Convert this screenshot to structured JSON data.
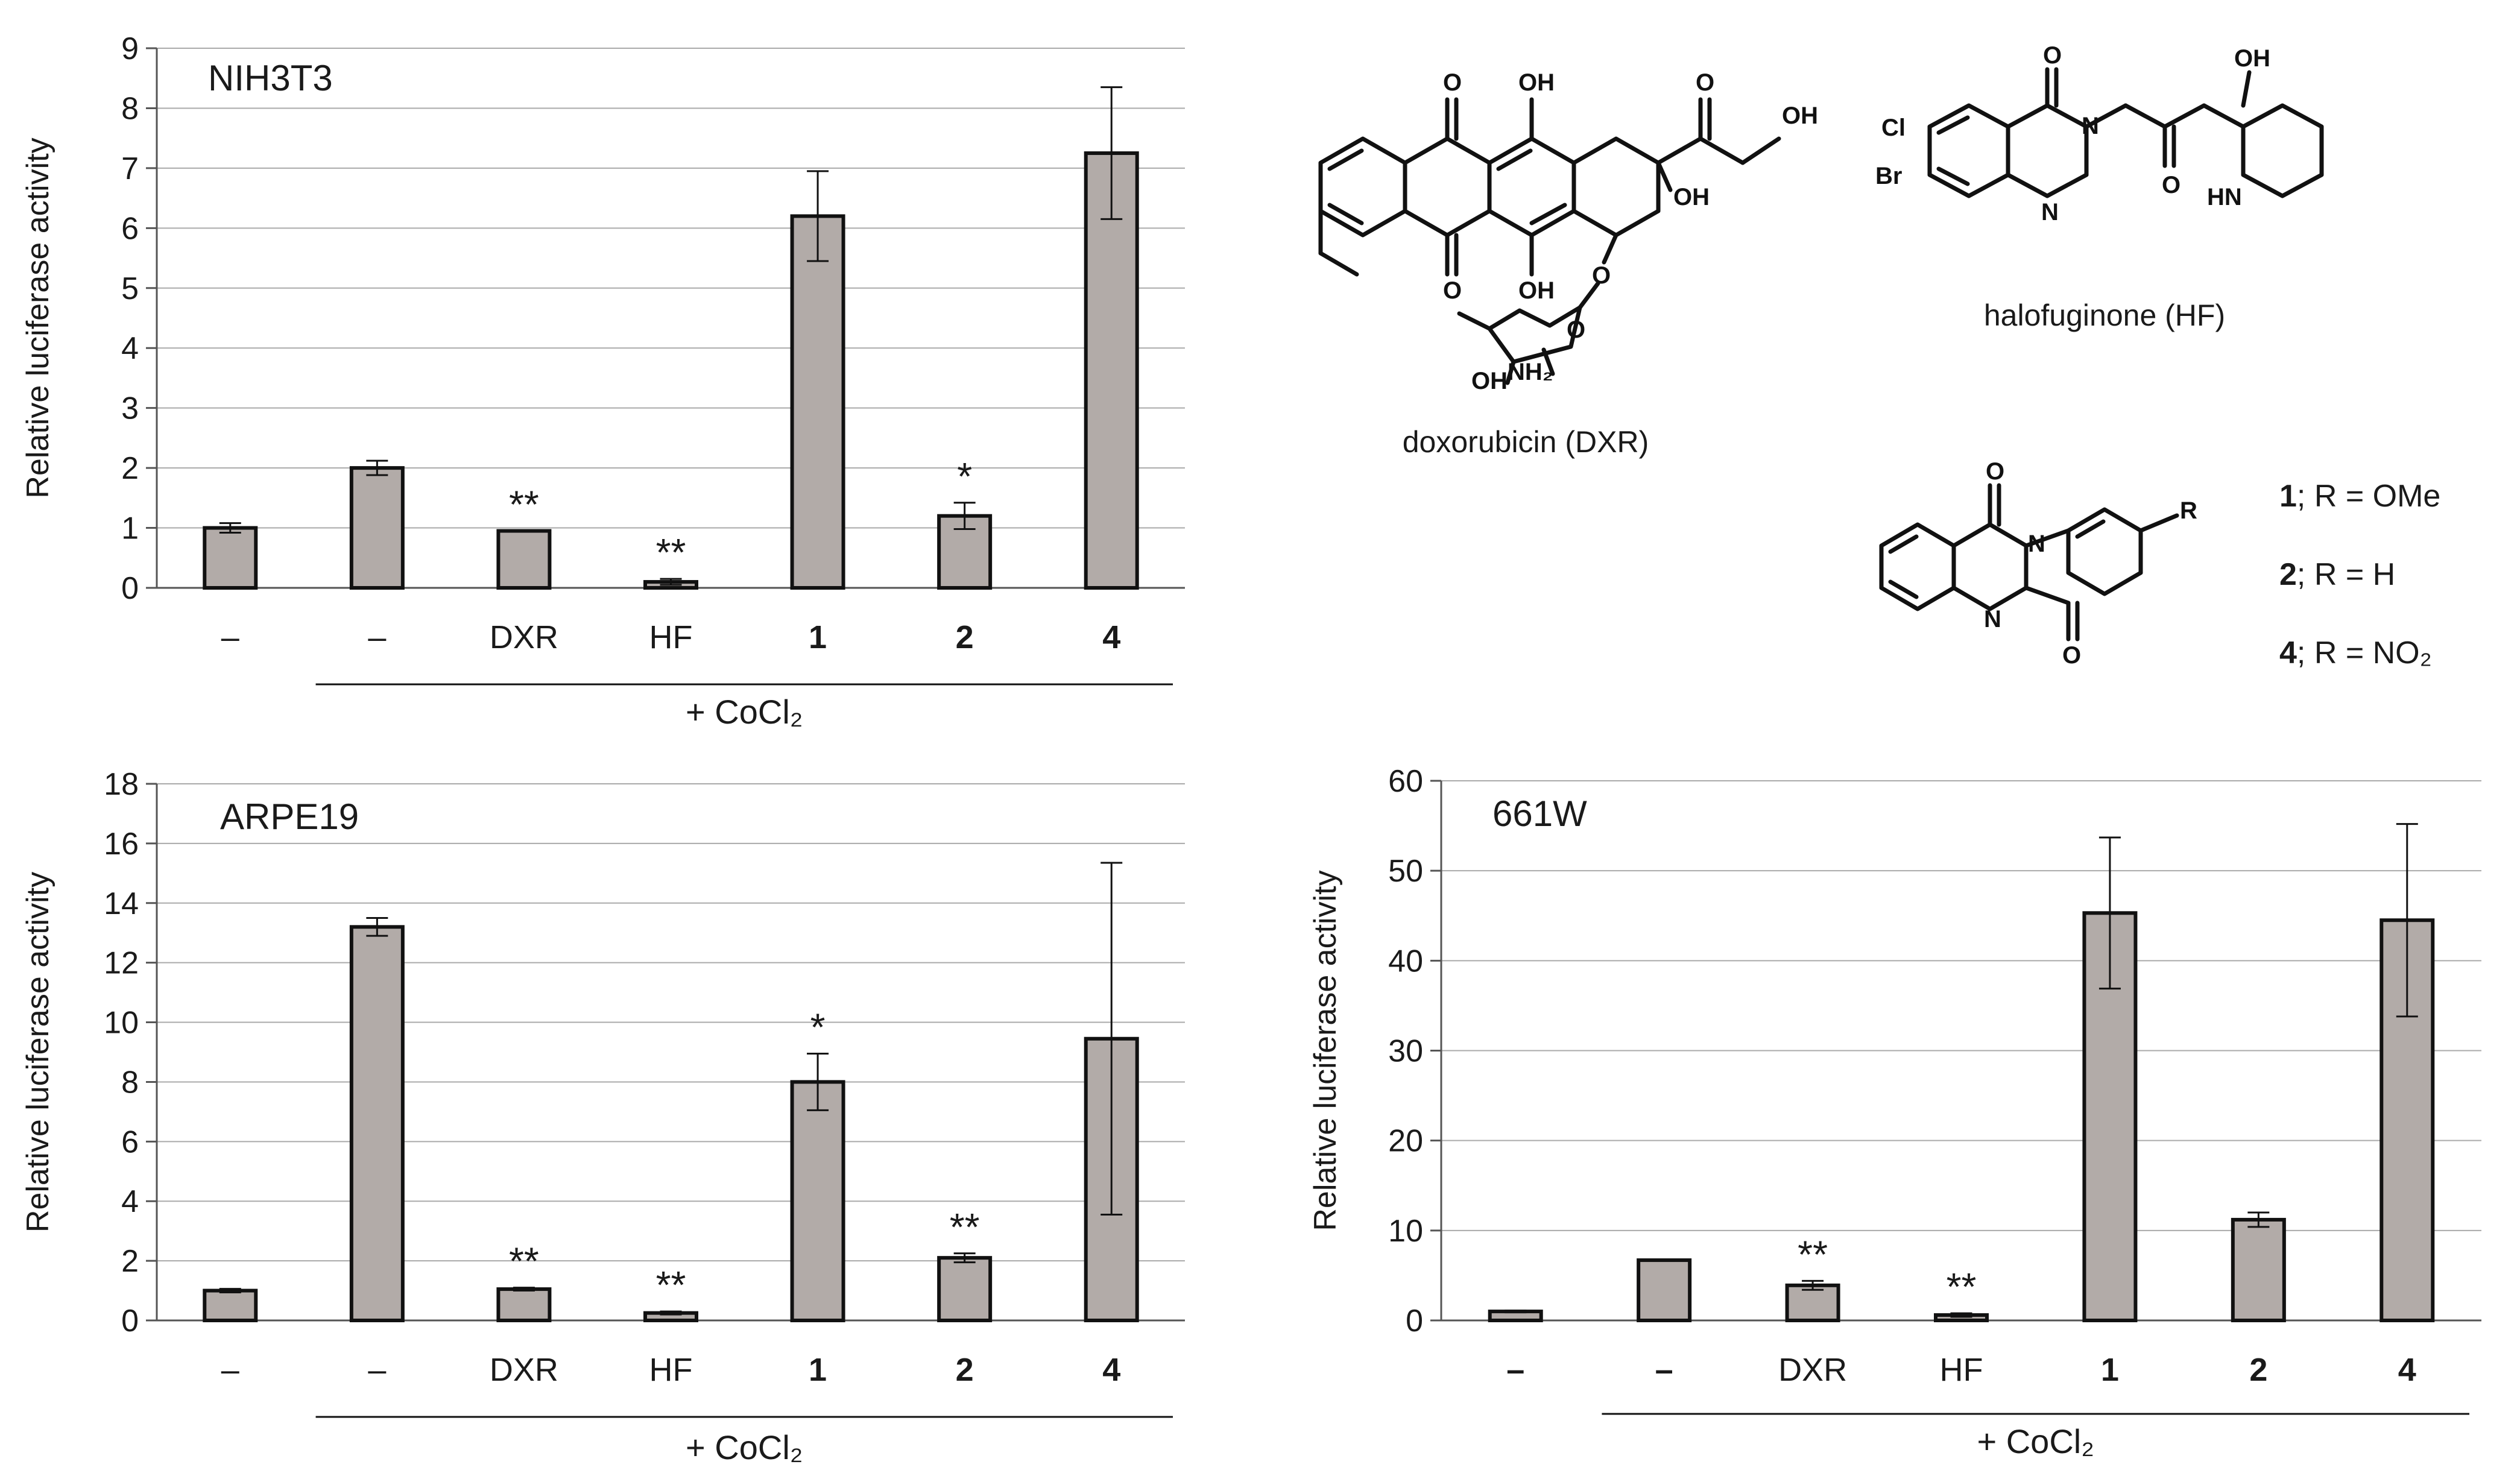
{
  "figure": {
    "colors": {
      "bar_fill": "#b2aba8",
      "bar_stroke": "#111111",
      "axis": "#555555",
      "grid": "#aaaaaa",
      "text": "#1a1a1a"
    }
  },
  "chart_data": [
    {
      "id": "nih3t3",
      "type": "bar",
      "title": "NIH3T3",
      "xlabel": "",
      "ylabel": "Relative luciferase activity",
      "ylim": [
        0,
        9
      ],
      "yticks": [
        0,
        1,
        2,
        3,
        4,
        5,
        6,
        7,
        8,
        9
      ],
      "grid": true,
      "categories": [
        "–",
        "–",
        "DXR",
        "HF",
        "1",
        "2",
        "4"
      ],
      "bold_categories": [
        false,
        false,
        false,
        false,
        true,
        true,
        true
      ],
      "values": [
        1.0,
        2.0,
        0.95,
        0.1,
        6.2,
        1.2,
        7.25
      ],
      "errors": [
        0.08,
        0.12,
        0.0,
        0.05,
        0.75,
        0.22,
        1.1
      ],
      "annotations": [
        "",
        "",
        "**",
        "**",
        "",
        "*",
        ""
      ],
      "group_label": "+ CoCl₂",
      "group_span": [
        1,
        6
      ]
    },
    {
      "id": "arpe19",
      "type": "bar",
      "title": "ARPE19",
      "xlabel": "",
      "ylabel": "Relative luciferase activity",
      "ylim": [
        0,
        18
      ],
      "yticks": [
        0,
        2,
        4,
        6,
        8,
        10,
        12,
        14,
        16,
        18
      ],
      "grid": true,
      "categories": [
        "–",
        "–",
        "DXR",
        "HF",
        "1",
        "2",
        "4"
      ],
      "bold_categories": [
        false,
        false,
        false,
        false,
        true,
        true,
        true
      ],
      "values": [
        1.0,
        13.2,
        1.05,
        0.25,
        8.0,
        2.1,
        9.45
      ],
      "errors": [
        0.06,
        0.3,
        0.05,
        0.05,
        0.95,
        0.15,
        5.9
      ],
      "annotations": [
        "",
        "",
        "**",
        "**",
        "*",
        "**",
        ""
      ],
      "group_label": "+ CoCl₂",
      "group_span": [
        1,
        6
      ]
    },
    {
      "id": "661w",
      "type": "bar",
      "title": "661W",
      "xlabel": "",
      "ylabel": "Relative luciferase activity",
      "ylim": [
        0,
        60
      ],
      "yticks": [
        0,
        10,
        20,
        30,
        40,
        50,
        60
      ],
      "grid": true,
      "categories": [
        "–",
        "–",
        "DXR",
        "HF",
        "1",
        "2",
        "4"
      ],
      "bold_categories": [
        true,
        true,
        false,
        false,
        true,
        true,
        true
      ],
      "values": [
        1.0,
        6.7,
        3.9,
        0.6,
        45.3,
        11.2,
        44.5
      ],
      "errors": [
        0.1,
        0.05,
        0.5,
        0.2,
        8.4,
        0.8,
        10.7
      ],
      "annotations": [
        "",
        "",
        "**",
        "**",
        "",
        "",
        ""
      ],
      "group_label": "+ CoCl₂",
      "group_span": [
        1,
        6
      ]
    }
  ],
  "structures": {
    "doxorubicin_name": "doxorubicin (DXR)",
    "halofuginone_name": "halofuginone (HF)",
    "dxr_atoms": {
      "O": "O",
      "OH": "OH",
      "NH2": "NH₂"
    },
    "hf_atoms": {
      "Cl": "Cl",
      "Br": "Br",
      "N": "N",
      "O": "O",
      "OH": "OH",
      "HN": "HN"
    },
    "indolo_atoms": {
      "N": "N",
      "O": "O",
      "R": "R"
    },
    "compound_key": [
      {
        "num": "1",
        "text": "; R = OMe"
      },
      {
        "num": "2",
        "text": "; R = H"
      },
      {
        "num": "4",
        "text": "; R = NO₂"
      }
    ]
  }
}
